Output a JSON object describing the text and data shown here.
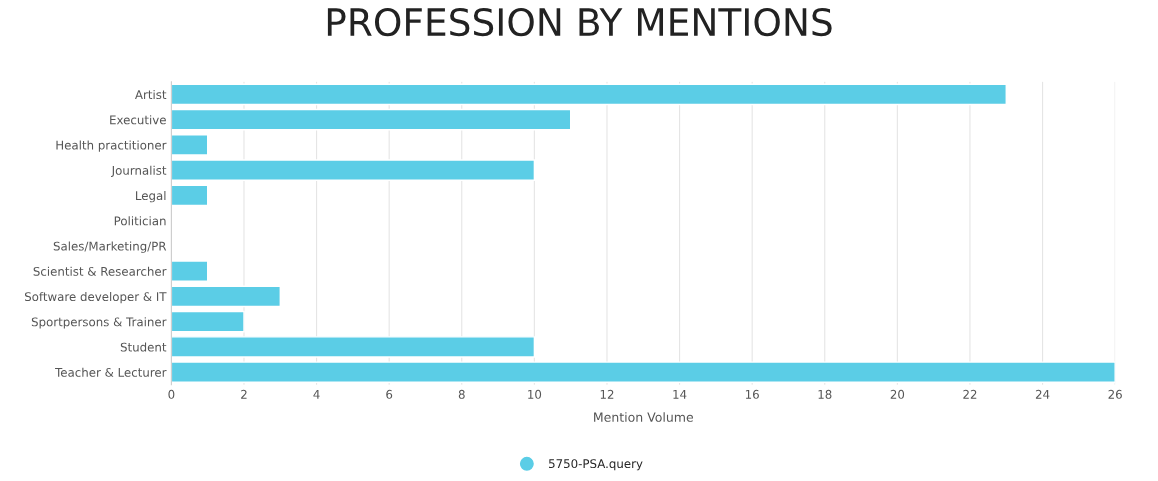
{
  "chart_data": {
    "type": "bar",
    "orientation": "horizontal",
    "title": "PROFESSION BY MENTIONS",
    "xlabel": "Mention Volume",
    "categories": [
      "Artist",
      "Executive",
      "Health practitioner",
      "Journalist",
      "Legal",
      "Politician",
      "Sales/Marketing/PR",
      "Scientist & Researcher",
      "Software developer & IT",
      "Sportpersons & Trainer",
      "Student",
      "Teacher & Lecturer"
    ],
    "series": [
      {
        "name": "5750-PSA.query",
        "color": "#5bcde6",
        "values": [
          23,
          11,
          1,
          10,
          1,
          null,
          null,
          1,
          3,
          2,
          10,
          26
        ]
      }
    ],
    "xlim": [
      0,
      26
    ],
    "xticks": [
      0,
      2,
      4,
      6,
      8,
      10,
      12,
      14,
      16,
      18,
      20,
      22,
      24,
      26
    ],
    "grid": "x",
    "legend": "bottom"
  }
}
